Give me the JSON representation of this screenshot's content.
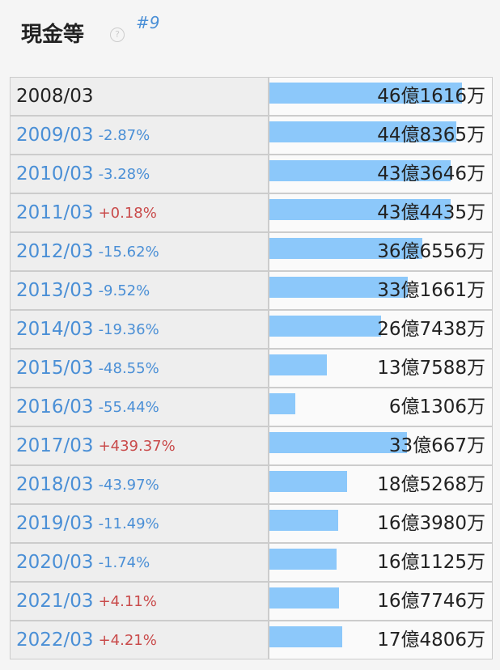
{
  "header": {
    "title": "現金等",
    "rank": "#9",
    "help": "?"
  },
  "table": {
    "rows": [
      {
        "year": "2008/03",
        "change": null,
        "value_label": "46億1616万",
        "value": 461616
      },
      {
        "year": "2009/03",
        "change": "-2.87%",
        "value_label": "44億8365万",
        "value": 448365
      },
      {
        "year": "2010/03",
        "change": "-3.28%",
        "value_label": "43億3646万",
        "value": 433646
      },
      {
        "year": "2011/03",
        "change": "+0.18%",
        "value_label": "43億4435万",
        "value": 434435
      },
      {
        "year": "2012/03",
        "change": "-15.62%",
        "value_label": "36億6556万",
        "value": 366556
      },
      {
        "year": "2013/03",
        "change": "-9.52%",
        "value_label": "33億1661万",
        "value": 331661
      },
      {
        "year": "2014/03",
        "change": "-19.36%",
        "value_label": "26億7438万",
        "value": 267438
      },
      {
        "year": "2015/03",
        "change": "-48.55%",
        "value_label": "13億7588万",
        "value": 137588
      },
      {
        "year": "2016/03",
        "change": "-55.44%",
        "value_label": "6億1306万",
        "value": 61306
      },
      {
        "year": "2017/03",
        "change": "+439.37%",
        "value_label": "33億667万",
        "value": 330667
      },
      {
        "year": "2018/03",
        "change": "-43.97%",
        "value_label": "18億5268万",
        "value": 185268
      },
      {
        "year": "2019/03",
        "change": "-11.49%",
        "value_label": "16億3980万",
        "value": 163980
      },
      {
        "year": "2020/03",
        "change": "-1.74%",
        "value_label": "16億1125万",
        "value": 161125
      },
      {
        "year": "2021/03",
        "change": "+4.11%",
        "value_label": "16億7746万",
        "value": 167746
      },
      {
        "year": "2022/03",
        "change": "+4.21%",
        "value_label": "17億4806万",
        "value": 174806
      }
    ]
  }
}
